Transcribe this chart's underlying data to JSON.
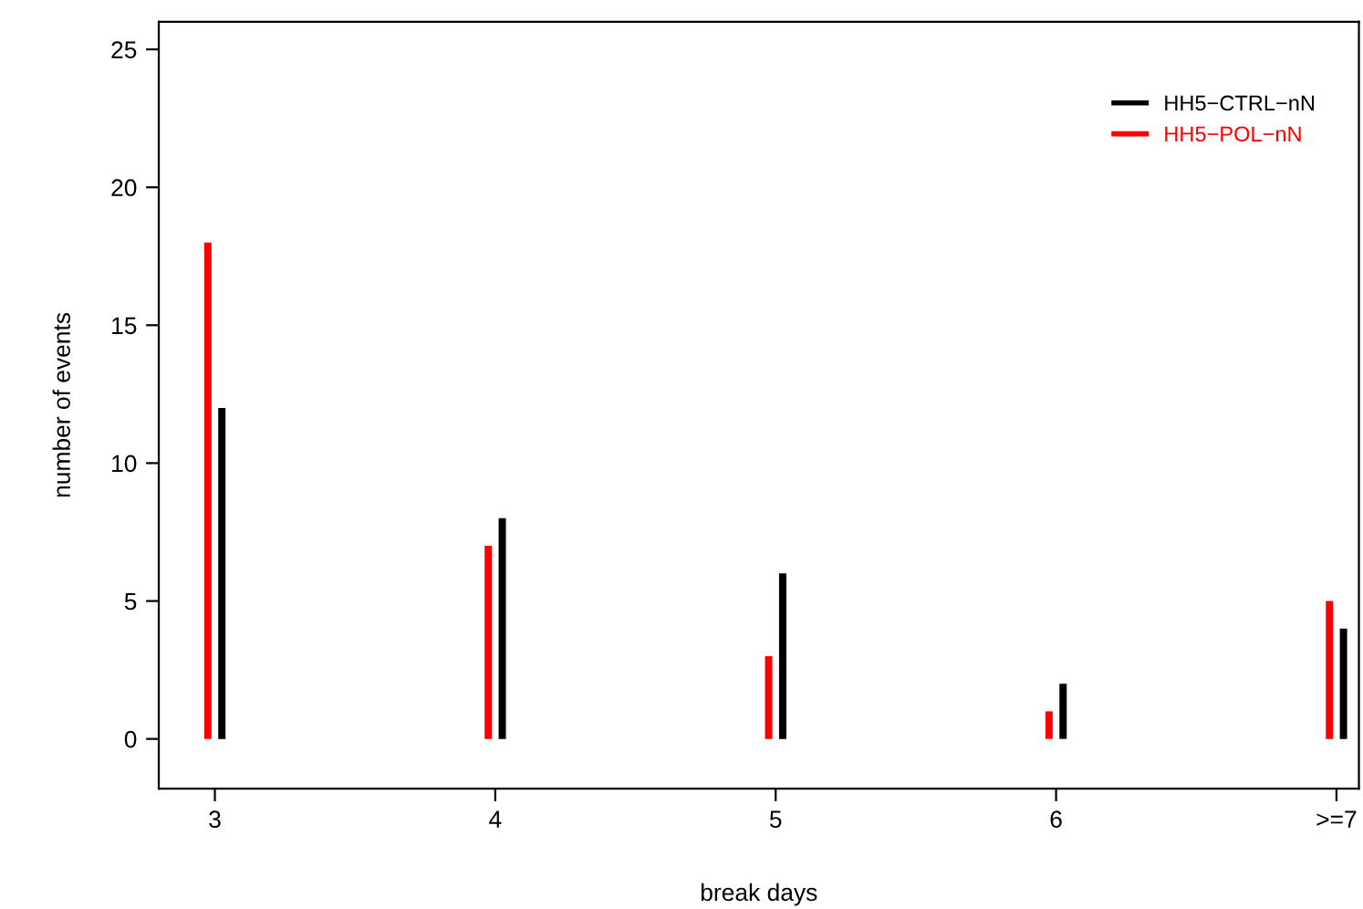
{
  "chart_data": {
    "type": "bar",
    "xlabel": "break days",
    "ylabel": "number of events",
    "categories": [
      "3",
      "4",
      "5",
      "6",
      ">=7"
    ],
    "series": [
      {
        "name": "HH5−POL−nN",
        "color": "#ff0000",
        "values": [
          18,
          7,
          3,
          1,
          5
        ]
      },
      {
        "name": "HH5−CTRL−nN",
        "color": "#000000",
        "values": [
          12,
          8,
          6,
          2,
          4
        ]
      }
    ],
    "ylim": [
      -1.8,
      26
    ],
    "yticks": [
      0,
      5,
      10,
      15,
      20,
      25
    ],
    "grid": false,
    "legend": "top right"
  }
}
